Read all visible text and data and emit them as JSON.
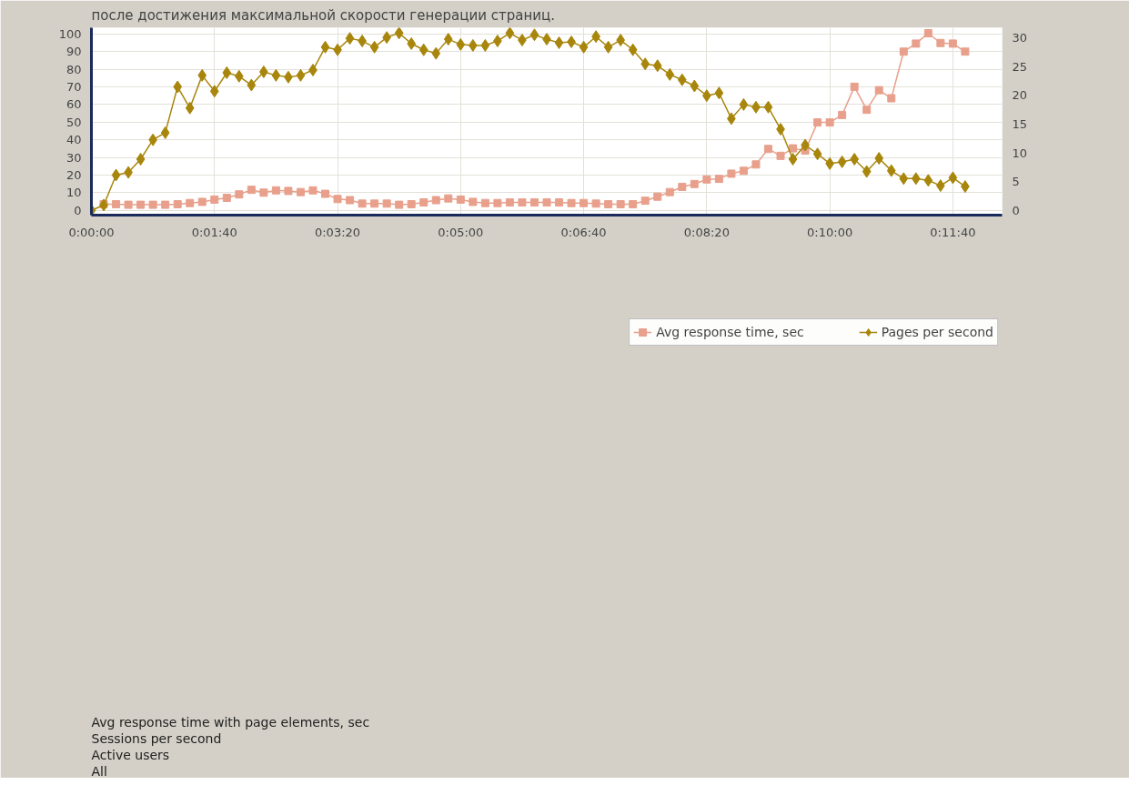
{
  "chart_data": {
    "type": "line",
    "x": [
      0,
      10,
      20,
      30,
      40,
      50,
      60,
      70,
      80,
      90,
      100,
      110,
      120,
      130,
      140,
      150,
      160,
      170,
      180,
      190,
      200,
      210,
      220,
      230,
      240,
      250,
      260,
      270,
      280,
      290,
      300,
      310,
      320,
      330,
      340,
      350,
      360,
      370,
      380,
      390,
      400,
      410,
      420,
      430,
      440,
      450,
      460,
      470,
      480,
      490,
      500,
      510,
      520,
      530,
      540,
      550,
      560,
      570,
      580,
      590,
      600,
      610,
      620,
      630,
      640,
      650,
      660,
      670,
      680,
      690,
      700,
      710
    ],
    "series": [
      {
        "name": "Avg response time, sec",
        "color": "#e8a08c",
        "marker": "square",
        "axis": "y2",
        "values": [
          null,
          1.1,
          1.1,
          1.0,
          1.0,
          1.0,
          1.0,
          1.1,
          1.3,
          1.5,
          1.9,
          2.2,
          2.8,
          3.6,
          3.1,
          3.5,
          3.4,
          3.2,
          3.5,
          2.9,
          2.0,
          1.8,
          1.2,
          1.2,
          1.2,
          1.0,
          1.1,
          1.4,
          1.8,
          2.1,
          1.9,
          1.5,
          1.3,
          1.3,
          1.4,
          1.4,
          1.4,
          1.4,
          1.4,
          1.3,
          1.3,
          1.2,
          1.1,
          1.1,
          1.1,
          1.7,
          2.4,
          3.2,
          4.1,
          4.6,
          5.4,
          5.5,
          6.4,
          6.9,
          8.0,
          10.7,
          9.5,
          10.8,
          10.4,
          15.3,
          15.3,
          16.6,
          21.5,
          17.5,
          20.9,
          19.5,
          27.6,
          29.0,
          30.8,
          29.1,
          29.0,
          27.6
        ]
      },
      {
        "name": "Pages per second",
        "color": "#a8860c",
        "marker": "diamond",
        "values": [
          0,
          3,
          20,
          21.5,
          29,
          40,
          44,
          70,
          58,
          76.5,
          67.5,
          78,
          76,
          71,
          78.5,
          76.5,
          75.5,
          76.5,
          79.5,
          92.5,
          91,
          97.5,
          96,
          92.5,
          98,
          100.5,
          94.5,
          91,
          89,
          97,
          94,
          93.5,
          93.5,
          96,
          100.5,
          96.5,
          99.5,
          97,
          95,
          95.5,
          92.5,
          98.5,
          92.5,
          96.5,
          91,
          83,
          82,
          77,
          74,
          70.5,
          65,
          66.5,
          52,
          60,
          58.5,
          58.5,
          46,
          29,
          37,
          32,
          26.5,
          27.5,
          29,
          22,
          29.5,
          22.5,
          18,
          18,
          17,
          14,
          18.5,
          13.5
        ]
      }
    ],
    "xlim": [
      0,
      740
    ],
    "xticks": [
      {
        "value": 0,
        "label": "0:00:00"
      },
      {
        "value": 100,
        "label": "0:01:40"
      },
      {
        "value": 200,
        "label": "0:03:20"
      },
      {
        "value": 300,
        "label": "0:05:00"
      },
      {
        "value": 400,
        "label": "0:06:40"
      },
      {
        "value": 500,
        "label": "0:08:20"
      },
      {
        "value": 600,
        "label": "0:10:00"
      },
      {
        "value": 700,
        "label": "0:11:40"
      }
    ],
    "ylim": [
      -2.7,
      103.5
    ],
    "yticks": [
      0,
      10,
      20,
      30,
      40,
      50,
      60,
      70,
      80,
      90,
      100
    ],
    "y2lim": [
      -0.8,
      31.75
    ],
    "y2ticks": [
      0,
      5,
      10,
      15,
      20,
      25,
      30
    ],
    "grid": true,
    "legend": "bottom",
    "line_style": "solid",
    "annotations": [
      "после достижения максимальной скорости генерации страниц.",
      "Avg response time with page elements, sec",
      "Sessions per second",
      "Active users",
      "All"
    ]
  }
}
